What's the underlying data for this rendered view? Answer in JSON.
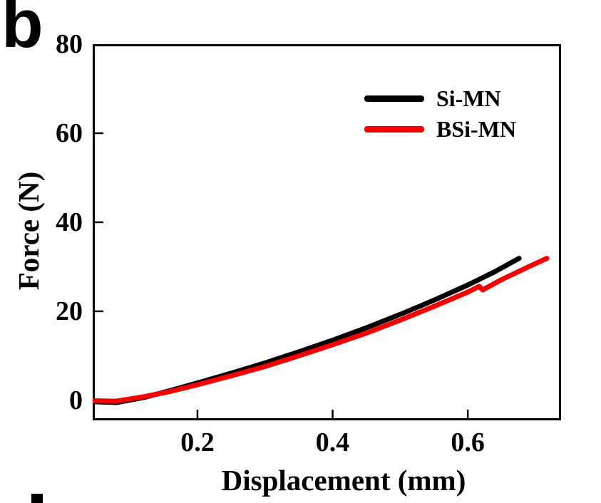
{
  "panel": {
    "label": "b"
  },
  "chart_data": {
    "type": "line",
    "title": "",
    "xlabel": "Displacement (mm)",
    "ylabel": "Force (N)",
    "xlim": [
      0.045,
      0.738
    ],
    "ylim": [
      -4.5,
      80
    ],
    "x_ticks": [
      0.2,
      0.4,
      0.6
    ],
    "y_ticks": [
      0,
      20,
      40,
      60,
      80
    ],
    "grid": false,
    "frame": "closed-box",
    "tick_direction": "in",
    "legend_position": "top-right-inside",
    "axis_color": "#000000",
    "series": [
      {
        "name": "Si-MN",
        "color": "#000000",
        "points": [
          [
            0.045,
            -0.3
          ],
          [
            0.08,
            -0.5
          ],
          [
            0.12,
            0.6
          ],
          [
            0.16,
            2.2
          ],
          [
            0.2,
            3.9
          ],
          [
            0.25,
            6.1
          ],
          [
            0.3,
            8.4
          ],
          [
            0.35,
            10.9
          ],
          [
            0.4,
            13.5
          ],
          [
            0.45,
            16.3
          ],
          [
            0.5,
            19.3
          ],
          [
            0.55,
            22.5
          ],
          [
            0.6,
            25.9
          ],
          [
            0.64,
            28.9
          ],
          [
            0.676,
            31.9
          ]
        ]
      },
      {
        "name": "BSi-MN",
        "color": "#f40000",
        "points": [
          [
            0.045,
            -0.1
          ],
          [
            0.08,
            -0.2
          ],
          [
            0.12,
            0.8
          ],
          [
            0.16,
            2.0
          ],
          [
            0.2,
            3.5
          ],
          [
            0.25,
            5.5
          ],
          [
            0.3,
            7.6
          ],
          [
            0.35,
            10.0
          ],
          [
            0.4,
            12.5
          ],
          [
            0.45,
            15.1
          ],
          [
            0.5,
            18.0
          ],
          [
            0.55,
            21.1
          ],
          [
            0.6,
            24.3
          ],
          [
            0.617,
            25.6
          ],
          [
            0.622,
            24.8
          ],
          [
            0.65,
            27.1
          ],
          [
            0.69,
            30.0
          ],
          [
            0.717,
            31.9
          ]
        ]
      }
    ]
  }
}
